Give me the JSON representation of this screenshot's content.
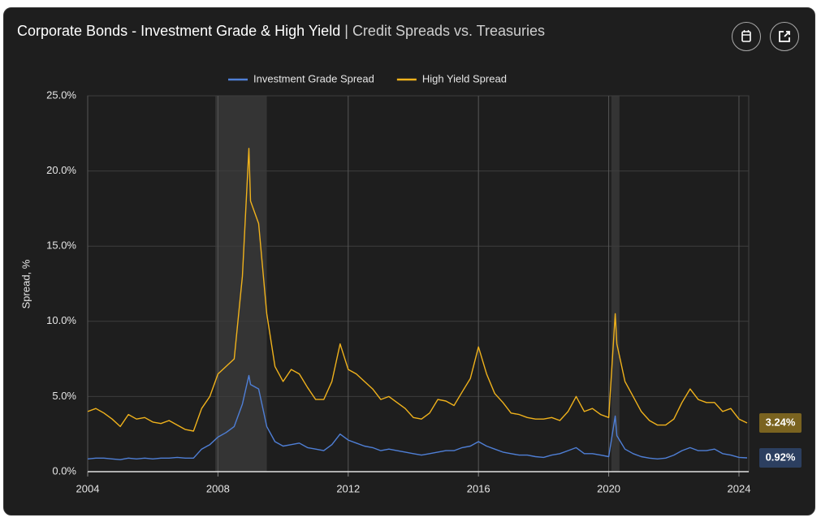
{
  "chart_data": {
    "type": "line",
    "title": "Corporate Bonds - Investment Grade & High Yield",
    "separator": "|",
    "subtitle": "Credit Spreads vs. Treasuries",
    "y_label": "Spread, %",
    "grid": true,
    "legend": "top",
    "xlim": [
      2004,
      2024.3
    ],
    "xticks": [
      2004,
      2008,
      2012,
      2016,
      2020,
      2024
    ],
    "ylim": [
      0,
      25
    ],
    "yticks": [
      {
        "value": 0,
        "label": "0.0%"
      },
      {
        "value": 5,
        "label": "5.0%"
      },
      {
        "value": 10,
        "label": "10.0%"
      },
      {
        "value": 15,
        "label": "15.0%"
      },
      {
        "value": 20,
        "label": "20.0%"
      },
      {
        "value": 25,
        "label": "25.0%"
      }
    ],
    "recessions": [
      [
        2007.92,
        2009.5
      ],
      [
        2020.08,
        2020.33
      ]
    ],
    "x": [
      2004,
      2004.25,
      2004.5,
      2004.75,
      2005,
      2005.25,
      2005.5,
      2005.75,
      2006,
      2006.25,
      2006.5,
      2006.75,
      2007,
      2007.25,
      2007.5,
      2007.75,
      2008,
      2008.25,
      2008.5,
      2008.75,
      2008.95,
      2009,
      2009.25,
      2009.5,
      2009.75,
      2010,
      2010.25,
      2010.5,
      2010.75,
      2011,
      2011.25,
      2011.5,
      2011.75,
      2012,
      2012.25,
      2012.5,
      2012.75,
      2013,
      2013.25,
      2013.5,
      2013.75,
      2014,
      2014.25,
      2014.5,
      2014.75,
      2015,
      2015.25,
      2015.5,
      2015.75,
      2016,
      2016.25,
      2016.5,
      2016.75,
      2017,
      2017.25,
      2017.5,
      2017.75,
      2018,
      2018.25,
      2018.5,
      2018.75,
      2019,
      2019.25,
      2019.5,
      2019.75,
      2020,
      2020.2,
      2020.25,
      2020.5,
      2020.75,
      2021,
      2021.25,
      2021.5,
      2021.75,
      2022,
      2022.25,
      2022.5,
      2022.75,
      2023,
      2023.25,
      2023.5,
      2023.75,
      2024,
      2024.25
    ],
    "series": [
      {
        "name": "Investment Grade Spread",
        "color": "#4f7fd6",
        "values": [
          0.85,
          0.9,
          0.9,
          0.85,
          0.8,
          0.9,
          0.85,
          0.9,
          0.85,
          0.9,
          0.9,
          0.95,
          0.9,
          0.9,
          1.5,
          1.8,
          2.3,
          2.6,
          3.0,
          4.5,
          6.4,
          5.8,
          5.5,
          3.0,
          2.0,
          1.7,
          1.8,
          1.9,
          1.6,
          1.5,
          1.4,
          1.8,
          2.5,
          2.1,
          1.9,
          1.7,
          1.6,
          1.4,
          1.5,
          1.4,
          1.3,
          1.2,
          1.1,
          1.2,
          1.3,
          1.4,
          1.4,
          1.6,
          1.7,
          2.0,
          1.7,
          1.5,
          1.3,
          1.2,
          1.1,
          1.1,
          1.0,
          0.95,
          1.1,
          1.2,
          1.4,
          1.6,
          1.2,
          1.2,
          1.1,
          1.0,
          3.7,
          2.4,
          1.5,
          1.2,
          1.0,
          0.9,
          0.85,
          0.9,
          1.1,
          1.4,
          1.6,
          1.4,
          1.4,
          1.5,
          1.2,
          1.1,
          0.95,
          0.92
        ],
        "end_label": {
          "value": 0.92,
          "label": "0.92%"
        },
        "label_color": "#2c3f60"
      },
      {
        "name": "High Yield Spread",
        "color": "#f0b21c",
        "values": [
          4.0,
          4.2,
          3.9,
          3.5,
          3.0,
          3.8,
          3.5,
          3.6,
          3.3,
          3.2,
          3.4,
          3.1,
          2.8,
          2.7,
          4.2,
          5.0,
          6.5,
          7.0,
          7.5,
          13.0,
          21.5,
          18.0,
          16.5,
          10.5,
          7.0,
          6.0,
          6.8,
          6.5,
          5.6,
          4.8,
          4.8,
          6.0,
          8.5,
          6.8,
          6.5,
          6.0,
          5.5,
          4.8,
          5.0,
          4.6,
          4.2,
          3.6,
          3.5,
          3.9,
          4.8,
          4.7,
          4.4,
          5.3,
          6.2,
          8.3,
          6.5,
          5.2,
          4.6,
          3.9,
          3.8,
          3.6,
          3.5,
          3.5,
          3.6,
          3.4,
          4.0,
          5.0,
          4.0,
          4.2,
          3.8,
          3.6,
          10.5,
          8.5,
          6.0,
          5.0,
          4.0,
          3.4,
          3.1,
          3.1,
          3.5,
          4.6,
          5.5,
          4.8,
          4.6,
          4.6,
          4.0,
          4.2,
          3.5,
          3.24
        ],
        "end_label": {
          "value": 3.24,
          "label": "3.24%"
        },
        "label_color": "#7a6320"
      }
    ]
  }
}
